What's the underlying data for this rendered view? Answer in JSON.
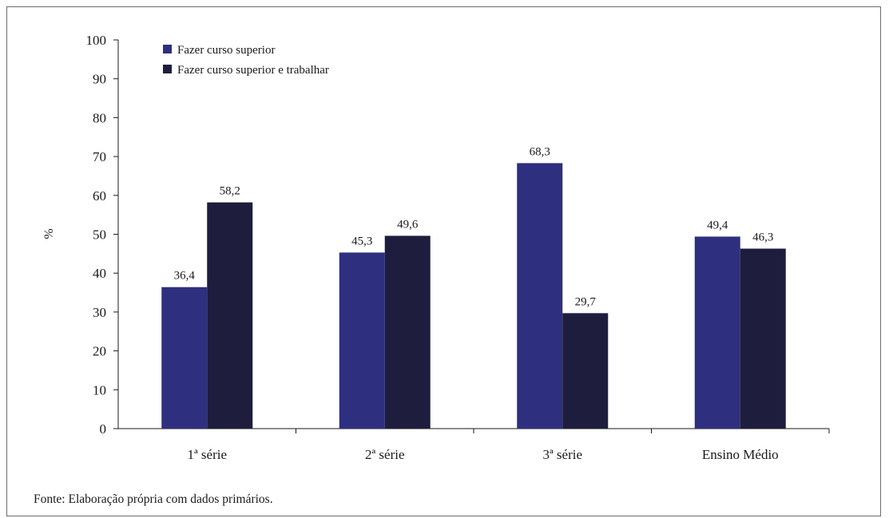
{
  "source_note": "Fonte: Elaboração própria com dados primários.",
  "chart_data": {
    "type": "bar",
    "ylabel": "%",
    "xlabel": "",
    "ylim": [
      0,
      100
    ],
    "yticks": [
      0,
      10,
      20,
      30,
      40,
      50,
      60,
      70,
      80,
      90,
      100
    ],
    "categories": [
      "1ª série",
      "2ª série",
      "3ª série",
      "Ensino Médio"
    ],
    "series": [
      {
        "name": "Fazer curso superior",
        "color": "#2e2f7f",
        "values": [
          36.4,
          45.3,
          68.3,
          49.4
        ],
        "labels": [
          "36,4",
          "45,3",
          "68,3",
          "49,4"
        ]
      },
      {
        "name": "Fazer curso superior e trabalhar",
        "color": "#1e1d3d",
        "values": [
          58.2,
          49.6,
          29.7,
          46.3
        ],
        "labels": [
          "58,2",
          "49,6",
          "29,7",
          "46,3"
        ]
      }
    ],
    "legend_position": "top-left",
    "grid": false
  }
}
